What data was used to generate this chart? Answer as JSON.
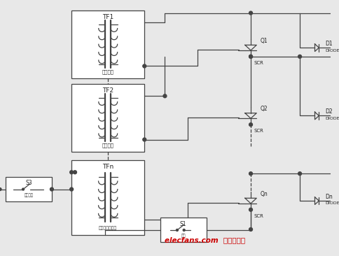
{
  "bg_color": "#e8e8e8",
  "line_color": "#444444",
  "lw": 0.9,
  "watermark": "elecfans.com  电子发烧友",
  "watermark_color": "#cc0000",
  "tf1_label": "TF1",
  "tf2_label": "TF2",
  "tfn_label": "TFn",
  "tf1_sub": "触发脚冲",
  "tf2_sub": "触发脚冲",
  "tfn_sub": "晶闸管驱动电路",
  "q1_label": "Q1",
  "q2_label": "Q2",
  "qn_label": "Qn",
  "d1_label": "D1",
  "d2_label": "D2",
  "dn_label": "Dn",
  "scr_label": "SCR",
  "diode_label": "DIODE",
  "s3_label": "S3",
  "s3_sub": "触发脚冲",
  "s1_label": "S1",
  "s1_sub": "信号"
}
